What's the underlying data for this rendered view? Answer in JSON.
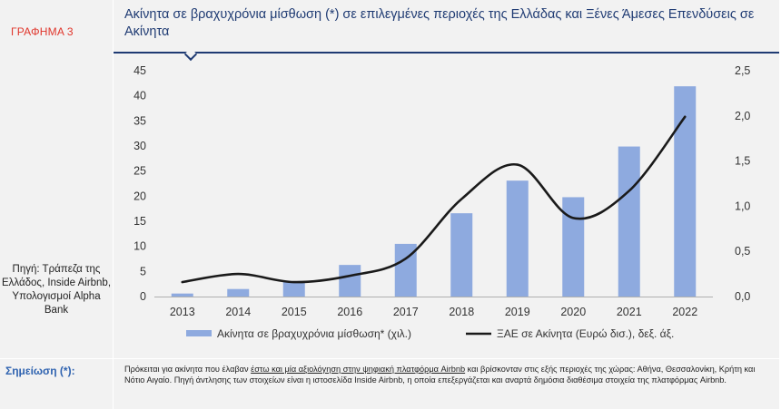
{
  "figure_label": "ΓΡΑΦΗΜΑ 3",
  "title": "Ακίνητα σε βραχυχρόνια μίσθωση (*) σε επιλεγμένες περιοχές της Ελλάδας και Ξένες Άμεσες Επενδύσεις σε Ακίνητα",
  "source": "Πηγή: Τράπεζα της Ελλάδος, Inside Airbnb, Υπολογισμοί Alpha Bank",
  "note": {
    "label": "Σημείωση (*):",
    "part1": "Πρόκειται για ακίνητα που έλαβαν ",
    "underlined": "έστω και μία αξιολόγηση στην ψηφιακή πλατφόρμα Airbnb",
    "part2": " και βρίσκονταν στις εξής περιοχές της χώρας: Αθήνα, Θεσσαλονίκη, Κρήτη και Νότιο Αιγαίο. Πηγή άντλησης των στοιχείων είναι η ιστοσελίδα Inside Airbnb, η οποία επεξεργάζεται και αναρτά δημόσια διαθέσιμα στοιχεία της πλατφόρμας Airbnb."
  },
  "colors": {
    "bar": "#8eaadf",
    "line": "#1a1a1a",
    "title": "#1f3b73",
    "figure_label": "#e0352b",
    "note_label": "#2f63b0"
  },
  "chart_data": {
    "type": "bar+line",
    "categories": [
      "2013",
      "2014",
      "2015",
      "2016",
      "2017",
      "2018",
      "2019",
      "2020",
      "2021",
      "2022"
    ],
    "series": [
      {
        "name": "Ακίνητα σε βραχυχρόνια μίσθωση* (χιλ.)",
        "type": "bar",
        "axis": "left",
        "values": [
          0.6,
          1.5,
          2.9,
          6.3,
          10.5,
          16.6,
          23.1,
          19.8,
          29.9,
          41.9
        ]
      },
      {
        "name": "ΞΑΕ σε Ακίνητα (Ευρώ δισ.), δεξ. άξ.",
        "type": "line",
        "axis": "right",
        "values": [
          0.16,
          0.25,
          0.16,
          0.23,
          0.42,
          1.08,
          1.46,
          0.87,
          1.17,
          1.99
        ]
      }
    ],
    "y_left": {
      "min": 0,
      "max": 45,
      "step": 5,
      "ticks": [
        "0",
        "5",
        "10",
        "15",
        "20",
        "25",
        "30",
        "35",
        "40",
        "45"
      ]
    },
    "y_right": {
      "min": 0,
      "max": 2.5,
      "step": 0.5,
      "ticks": [
        "0,0",
        "0,5",
        "1,0",
        "1,5",
        "2,0",
        "2,5"
      ]
    },
    "grid": false,
    "legend_position": "bottom"
  }
}
